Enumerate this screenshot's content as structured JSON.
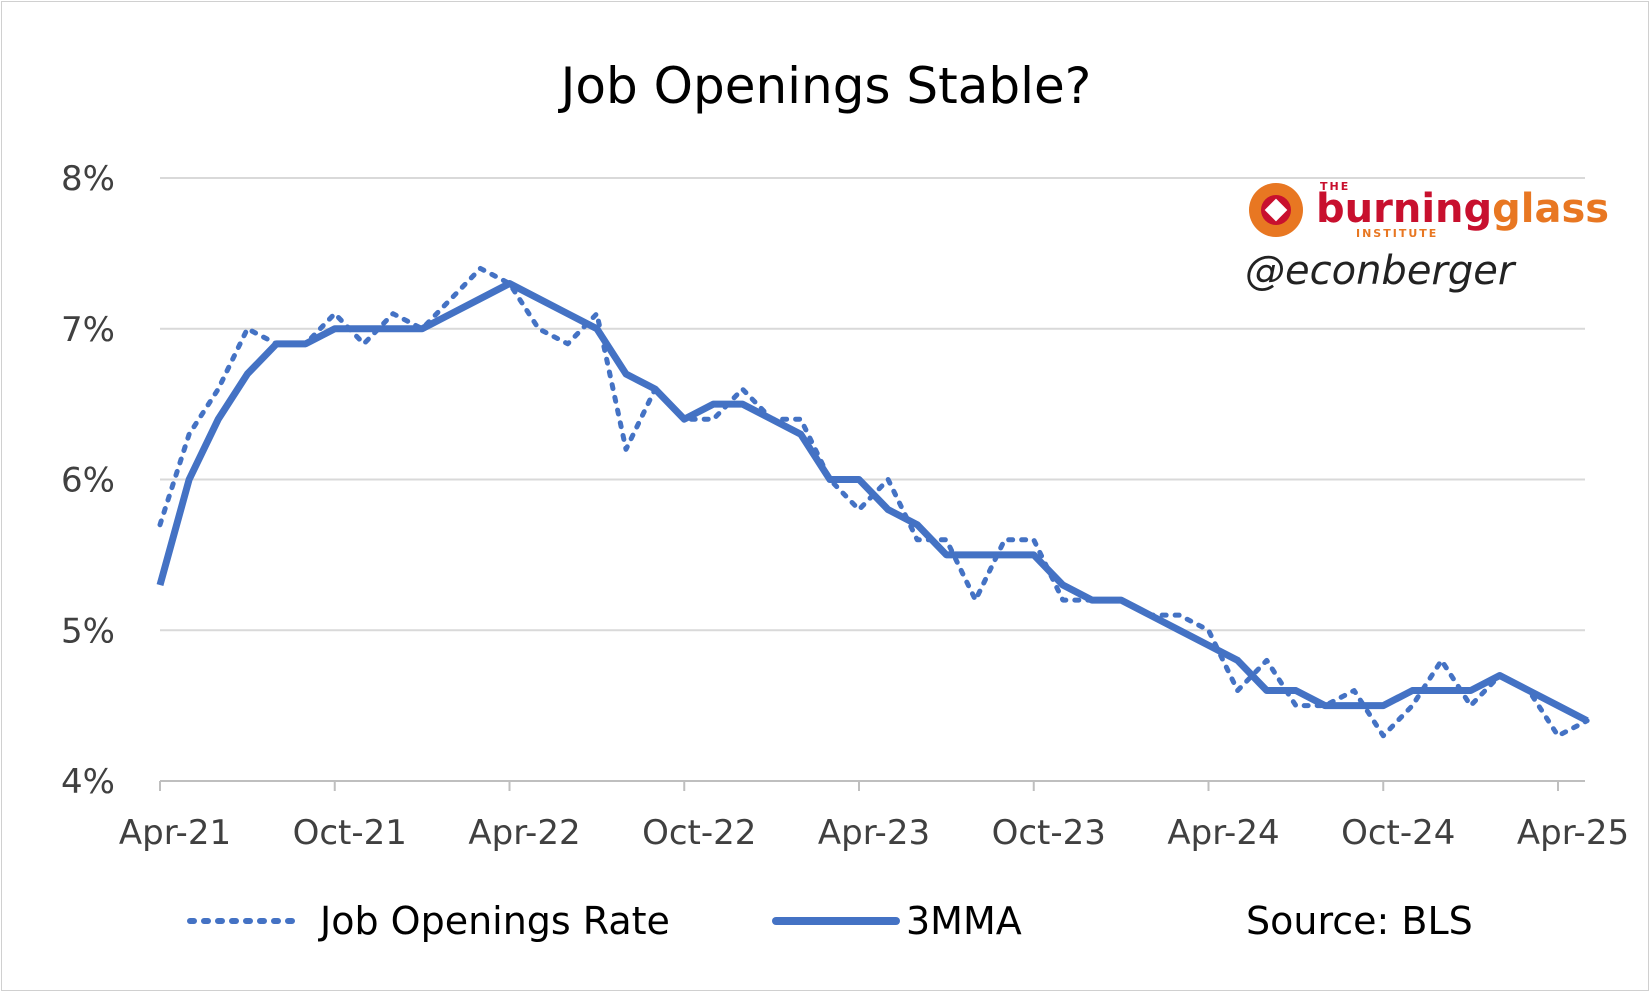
{
  "chart_data": {
    "type": "line",
    "title": "Job Openings Stable?",
    "xlabel": "",
    "ylabel": "",
    "x_start": "Apr-21",
    "x_end": "Apr-25",
    "x_tick_labels": [
      "Apr-21",
      "Oct-21",
      "Apr-22",
      "Oct-22",
      "Apr-23",
      "Oct-23",
      "Apr-24",
      "Oct-24",
      "Apr-25"
    ],
    "y_tick_labels": [
      "4%",
      "5%",
      "6%",
      "7%",
      "8%"
    ],
    "ylim": [
      4,
      8
    ],
    "grid": true,
    "legend_position": "bottom",
    "series": [
      {
        "name": "Job Openings Rate",
        "style": "dotted",
        "color": "#4472C4",
        "values": [
          5.7,
          6.3,
          6.6,
          7.0,
          6.9,
          6.9,
          7.1,
          6.9,
          7.1,
          7.0,
          7.2,
          7.4,
          7.3,
          7.0,
          6.9,
          7.1,
          6.2,
          6.6,
          6.4,
          6.4,
          6.6,
          6.4,
          6.4,
          6.0,
          5.8,
          6.0,
          5.6,
          5.6,
          5.2,
          5.6,
          5.6,
          5.2,
          5.2,
          5.2,
          5.1,
          5.1,
          5.0,
          4.6,
          4.8,
          4.5,
          4.5,
          4.6,
          4.3,
          4.5,
          4.8,
          4.5,
          4.7,
          4.6,
          4.3,
          4.4
        ]
      },
      {
        "name": "3MMA",
        "style": "solid",
        "color": "#4472C4",
        "values": [
          5.3,
          6.0,
          6.4,
          6.7,
          6.9,
          6.9,
          7.0,
          7.0,
          7.0,
          7.0,
          7.1,
          7.2,
          7.3,
          7.2,
          7.1,
          7.0,
          6.7,
          6.6,
          6.4,
          6.5,
          6.5,
          6.4,
          6.3,
          6.0,
          6.0,
          5.8,
          5.7,
          5.5,
          5.5,
          5.5,
          5.5,
          5.3,
          5.2,
          5.2,
          5.1,
          5.0,
          4.9,
          4.8,
          4.6,
          4.6,
          4.5,
          4.5,
          4.5,
          4.6,
          4.6,
          4.6,
          4.7,
          4.6,
          4.5,
          4.4
        ]
      }
    ]
  },
  "source_note": "Source: BLS",
  "logo": {
    "the": "THE",
    "word1": "burning",
    "word2": "glass",
    "sub": "INSTITUTE",
    "red": "#C8102E",
    "orange": "#E87722"
  },
  "handle": "@econberger"
}
